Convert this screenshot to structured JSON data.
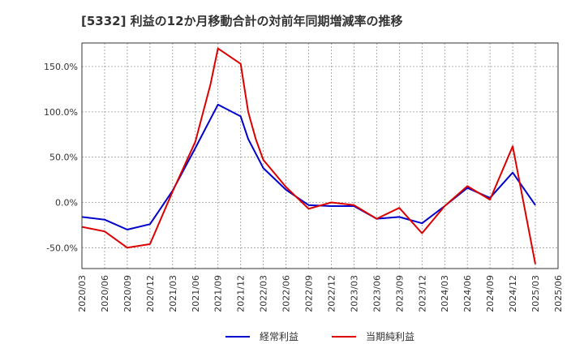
{
  "chart_data": {
    "type": "line",
    "title": "[5332]  利益の12か月移動合計の対前年同期増減率の推移",
    "xlabel": "",
    "ylabel": "",
    "x_ticks": [
      "2020/03",
      "2020/06",
      "2020/09",
      "2020/12",
      "2021/03",
      "2021/06",
      "2021/09",
      "2021/12",
      "2022/03",
      "2022/06",
      "2022/09",
      "2022/12",
      "2023/03",
      "2023/06",
      "2023/09",
      "2023/12",
      "2024/03",
      "2024/06",
      "2024/09",
      "2024/12",
      "2025/03",
      "2025/06"
    ],
    "y_ticks": [
      -50,
      0,
      50,
      100,
      150
    ],
    "y_tick_labels": [
      "-50.0%",
      "0.0%",
      "50.0%",
      "100.0%",
      "150.0%"
    ],
    "ylim": [
      -73,
      176
    ],
    "grid": true,
    "legend_position": "bottom-center",
    "series": [
      {
        "name": "経常利益",
        "color": "#0000cc",
        "x": [
          "2020/03",
          "2020/06",
          "2020/09",
          "2020/12",
          "2021/03",
          "2021/06",
          "2021/09",
          "2021/12",
          "2022/01",
          "2022/03",
          "2022/06",
          "2022/09",
          "2022/12",
          "2023/03",
          "2023/06",
          "2023/09",
          "2023/12",
          "2024/03",
          "2024/06",
          "2024/09",
          "2024/12",
          "2025/03"
        ],
        "values": [
          -16,
          -19,
          -30,
          -24,
          13,
          60,
          108,
          95,
          70,
          38,
          14,
          -3,
          -4,
          -4,
          -18,
          -16,
          -23,
          -4,
          16,
          5,
          33,
          -3
        ]
      },
      {
        "name": "当期純利益",
        "color": "#dd0000",
        "x": [
          "2020/03",
          "2020/06",
          "2020/09",
          "2020/12",
          "2021/03",
          "2021/06",
          "2021/08",
          "2021/09",
          "2021/12",
          "2022/01",
          "2022/02",
          "2022/03",
          "2022/06",
          "2022/09",
          "2022/12",
          "2023/03",
          "2023/06",
          "2023/09",
          "2023/12",
          "2024/03",
          "2024/06",
          "2024/09",
          "2024/12",
          "2025/03"
        ],
        "values": [
          -27,
          -32,
          -50,
          -46,
          12,
          67,
          130,
          170,
          153,
          100,
          70,
          47,
          17,
          -7,
          0,
          -3,
          -18,
          -6,
          -34,
          -4,
          18,
          3,
          62,
          -68
        ]
      }
    ]
  }
}
